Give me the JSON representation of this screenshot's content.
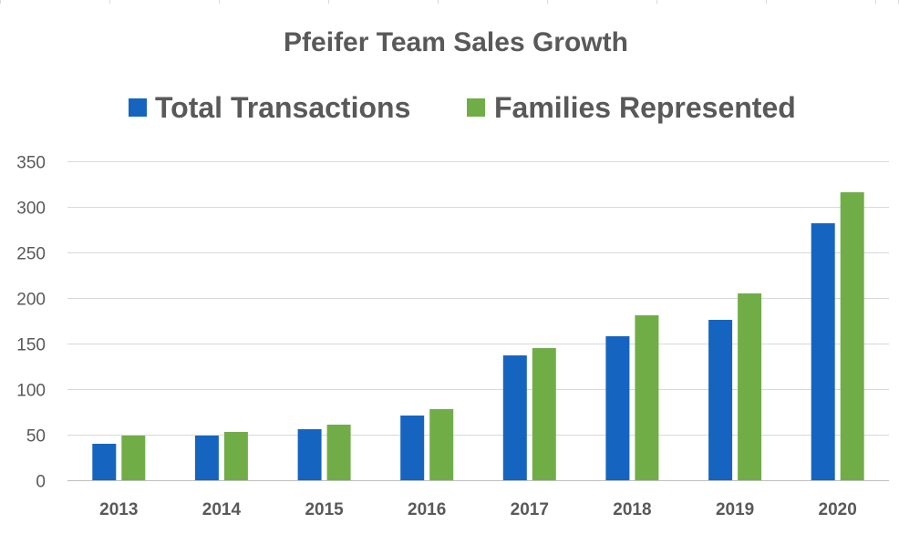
{
  "chart_data": {
    "type": "bar",
    "title": "Pfeifer Team Sales Growth",
    "categories": [
      "2013",
      "2014",
      "2015",
      "2016",
      "2017",
      "2018",
      "2019",
      "2020"
    ],
    "series": [
      {
        "name": "Total Transactions",
        "color": "#1565c0",
        "values": [
          40,
          49,
          56,
          71,
          137,
          158,
          176,
          282
        ]
      },
      {
        "name": "Families Represented",
        "color": "#70ad47",
        "values": [
          49,
          53,
          61,
          78,
          145,
          181,
          205,
          316
        ]
      }
    ],
    "ylim": [
      0,
      350
    ],
    "yticks": [
      0,
      50,
      100,
      150,
      200,
      250,
      300,
      350
    ],
    "grid": true,
    "legend_position": "top"
  }
}
